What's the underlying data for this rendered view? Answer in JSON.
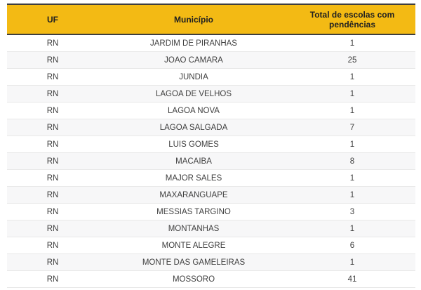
{
  "table": {
    "columns": [
      {
        "id": "uf",
        "label": "UF"
      },
      {
        "id": "municipio",
        "label": "Município"
      },
      {
        "id": "total",
        "label": "Total de escolas com pendências"
      }
    ],
    "rows": [
      {
        "uf": "RN",
        "municipio": "JARDIM DE PIRANHAS",
        "total": "1"
      },
      {
        "uf": "RN",
        "municipio": "JOAO CAMARA",
        "total": "25"
      },
      {
        "uf": "RN",
        "municipio": "JUNDIA",
        "total": "1"
      },
      {
        "uf": "RN",
        "municipio": "LAGOA DE VELHOS",
        "total": "1"
      },
      {
        "uf": "RN",
        "municipio": "LAGOA NOVA",
        "total": "1"
      },
      {
        "uf": "RN",
        "municipio": "LAGOA SALGADA",
        "total": "7"
      },
      {
        "uf": "RN",
        "municipio": "LUIS GOMES",
        "total": "1"
      },
      {
        "uf": "RN",
        "municipio": "MACAIBA",
        "total": "8"
      },
      {
        "uf": "RN",
        "municipio": "MAJOR SALES",
        "total": "1"
      },
      {
        "uf": "RN",
        "municipio": "MAXARANGUAPE",
        "total": "1"
      },
      {
        "uf": "RN",
        "municipio": "MESSIAS TARGINO",
        "total": "3"
      },
      {
        "uf": "RN",
        "municipio": "MONTANHAS",
        "total": "1"
      },
      {
        "uf": "RN",
        "municipio": "MONTE ALEGRE",
        "total": "6"
      },
      {
        "uf": "RN",
        "municipio": "MONTE DAS GAMELEIRAS",
        "total": "1"
      },
      {
        "uf": "RN",
        "municipio": "MOSSORO",
        "total": "41"
      }
    ]
  },
  "colors": {
    "header_bg": "#F3BA14",
    "header_border": "#3E3E3E",
    "header_text": "#212121",
    "row_alt_bg": "#F7F7F8",
    "row_border": "#E8E8E8",
    "body_text": "#3F3F3F"
  },
  "chart_data": {
    "type": "table",
    "title": "",
    "columns": [
      "UF",
      "Município",
      "Total de escolas com pendências"
    ],
    "rows": [
      [
        "RN",
        "JARDIM DE PIRANHAS",
        1
      ],
      [
        "RN",
        "JOAO CAMARA",
        25
      ],
      [
        "RN",
        "JUNDIA",
        1
      ],
      [
        "RN",
        "LAGOA DE VELHOS",
        1
      ],
      [
        "RN",
        "LAGOA NOVA",
        1
      ],
      [
        "RN",
        "LAGOA SALGADA",
        7
      ],
      [
        "RN",
        "LUIS GOMES",
        1
      ],
      [
        "RN",
        "MACAIBA",
        8
      ],
      [
        "RN",
        "MAJOR SALES",
        1
      ],
      [
        "RN",
        "MAXARANGUAPE",
        1
      ],
      [
        "RN",
        "MESSIAS TARGINO",
        3
      ],
      [
        "RN",
        "MONTANHAS",
        1
      ],
      [
        "RN",
        "MONTE ALEGRE",
        6
      ],
      [
        "RN",
        "MONTE DAS GAMELEIRAS",
        1
      ],
      [
        "RN",
        "MOSSORO",
        41
      ]
    ],
    "layout": {
      "header_background": "#F3BA14",
      "zebra_striping": true,
      "first_row_background": "#ffffff",
      "alt_row_background": "#F7F7F8"
    }
  }
}
